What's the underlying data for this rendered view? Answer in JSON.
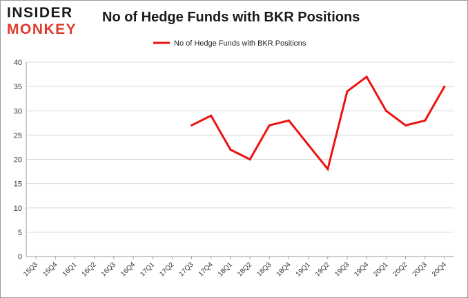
{
  "logo": {
    "line1": "INSIDER",
    "line2": "MONKEY"
  },
  "chart_data": {
    "type": "line",
    "title": "No of Hedge Funds with BKR Positions",
    "xlabel": "",
    "ylabel": "",
    "categories": [
      "15Q3",
      "15Q4",
      "16Q1",
      "16Q2",
      "16Q3",
      "16Q4",
      "17Q1",
      "17Q2",
      "17Q3",
      "17Q4",
      "18Q1",
      "18Q2",
      "18Q3",
      "18Q4",
      "19Q1",
      "19Q2",
      "19Q3",
      "19Q4",
      "20Q1",
      "20Q2",
      "20Q3",
      "20Q4"
    ],
    "series": [
      {
        "name": "No of Hedge Funds with BKR Positions",
        "color": "#ee1111",
        "values": [
          null,
          null,
          null,
          null,
          null,
          null,
          null,
          null,
          27,
          29,
          22,
          20,
          27,
          28,
          23,
          18,
          34,
          37,
          30,
          27,
          28,
          35
        ]
      }
    ],
    "ylim": [
      0,
      40
    ],
    "yticks": [
      0,
      5,
      10,
      15,
      20,
      25,
      30,
      35,
      40
    ],
    "grid": true,
    "legend_position": "top-center"
  }
}
